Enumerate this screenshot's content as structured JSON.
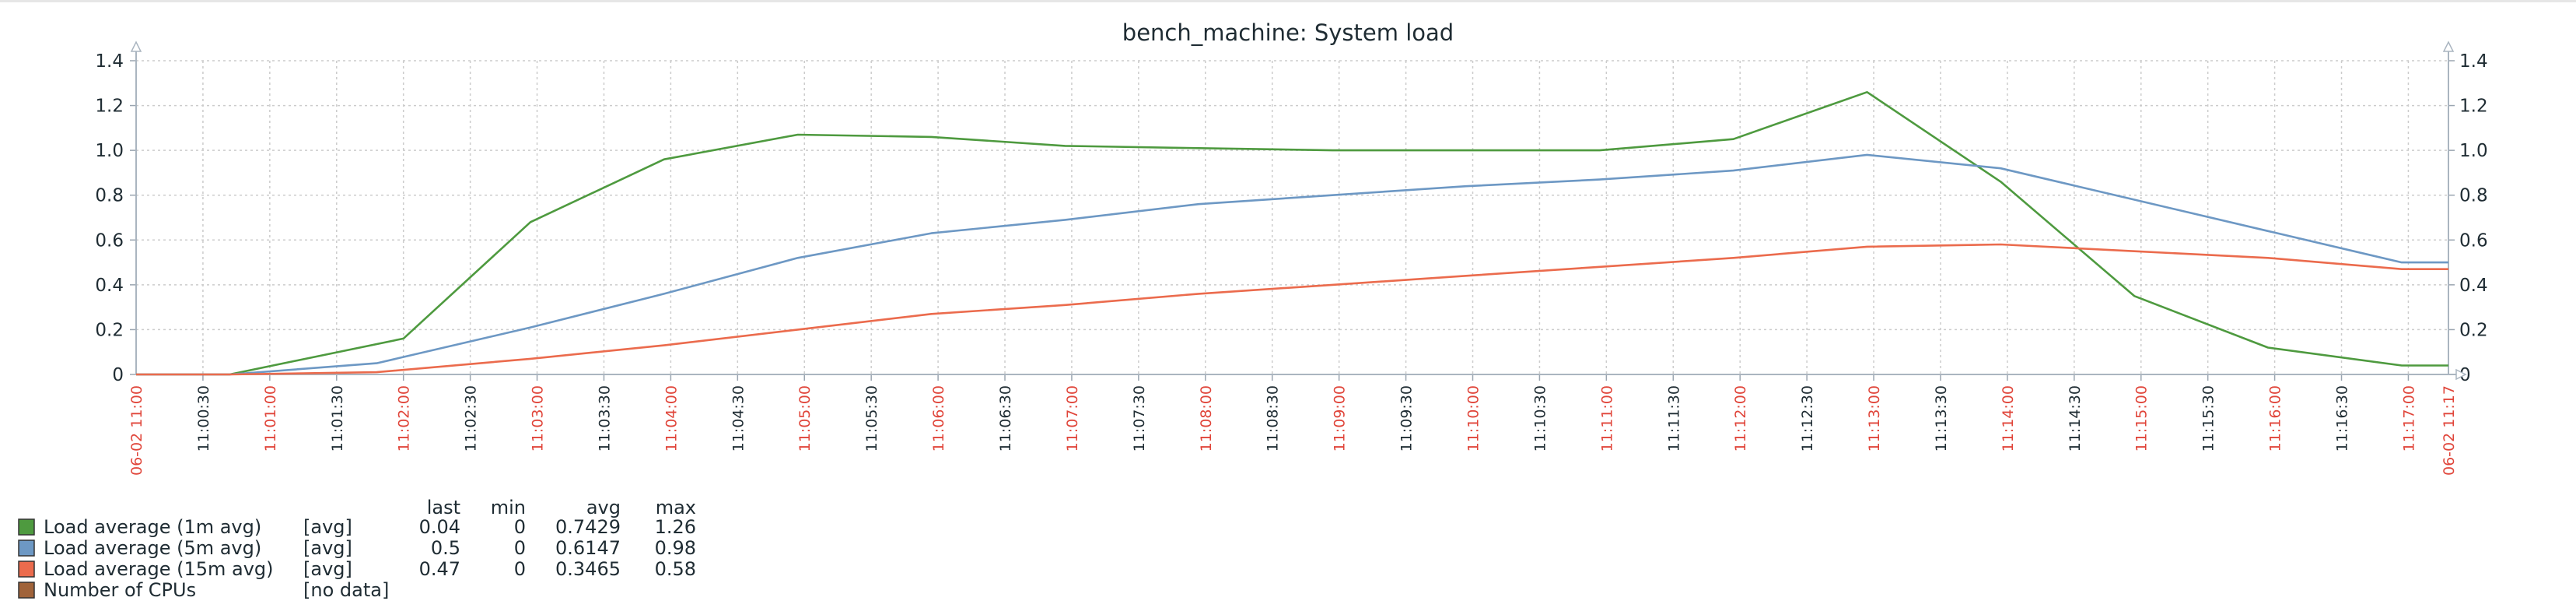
{
  "chart_data": {
    "type": "line",
    "title": "bench_machine: System load",
    "ylim": [
      0,
      1.4
    ],
    "y_ticks": [
      "0",
      "0.2",
      "0.4",
      "0.6",
      "0.8",
      "1.0",
      "1.2",
      "1.4"
    ],
    "y_tick_values": [
      0,
      0.2,
      0.4,
      0.6,
      0.8,
      1.0,
      1.2,
      1.4
    ],
    "x_start_label": "06-02 11:00",
    "x_end_label": "06-02 11:17",
    "x_ticks": [
      {
        "t": 0.5,
        "label": "11:00:30",
        "major": false
      },
      {
        "t": 1.0,
        "label": "11:01:00",
        "major": true
      },
      {
        "t": 1.5,
        "label": "11:01:30",
        "major": false
      },
      {
        "t": 2.0,
        "label": "11:02:00",
        "major": true
      },
      {
        "t": 2.5,
        "label": "11:02:30",
        "major": false
      },
      {
        "t": 3.0,
        "label": "11:03:00",
        "major": true
      },
      {
        "t": 3.5,
        "label": "11:03:30",
        "major": false
      },
      {
        "t": 4.0,
        "label": "11:04:00",
        "major": true
      },
      {
        "t": 4.5,
        "label": "11:04:30",
        "major": false
      },
      {
        "t": 5.0,
        "label": "11:05:00",
        "major": true
      },
      {
        "t": 5.5,
        "label": "11:05:30",
        "major": false
      },
      {
        "t": 6.0,
        "label": "11:06:00",
        "major": true
      },
      {
        "t": 6.5,
        "label": "11:06:30",
        "major": false
      },
      {
        "t": 7.0,
        "label": "11:07:00",
        "major": true
      },
      {
        "t": 7.5,
        "label": "11:07:30",
        "major": false
      },
      {
        "t": 8.0,
        "label": "11:08:00",
        "major": true
      },
      {
        "t": 8.5,
        "label": "11:08:30",
        "major": false
      },
      {
        "t": 9.0,
        "label": "11:09:00",
        "major": true
      },
      {
        "t": 9.5,
        "label": "11:09:30",
        "major": false
      },
      {
        "t": 10.0,
        "label": "11:10:00",
        "major": true
      },
      {
        "t": 10.5,
        "label": "11:10:30",
        "major": false
      },
      {
        "t": 11.0,
        "label": "11:11:00",
        "major": true
      },
      {
        "t": 11.5,
        "label": "11:11:30",
        "major": false
      },
      {
        "t": 12.0,
        "label": "11:12:00",
        "major": true
      },
      {
        "t": 12.5,
        "label": "11:12:30",
        "major": false
      },
      {
        "t": 13.0,
        "label": "11:13:00",
        "major": true
      },
      {
        "t": 13.5,
        "label": "11:13:30",
        "major": false
      },
      {
        "t": 14.0,
        "label": "11:14:00",
        "major": true
      },
      {
        "t": 14.5,
        "label": "11:14:30",
        "major": false
      },
      {
        "t": 15.0,
        "label": "11:15:00",
        "major": true
      },
      {
        "t": 15.5,
        "label": "11:15:30",
        "major": false
      },
      {
        "t": 16.0,
        "label": "11:16:00",
        "major": true
      },
      {
        "t": 16.5,
        "label": "11:16:30",
        "major": false
      },
      {
        "t": 17.0,
        "label": "11:17:00",
        "major": true
      }
    ],
    "series": [
      {
        "name": "Load average (1m avg)",
        "color": "#4e9a3f",
        "x": [
          0,
          0.7,
          2.0,
          2.95,
          3.95,
          4.95,
          5.95,
          6.95,
          7.95,
          8.95,
          9.95,
          10.95,
          11.95,
          12.95,
          13.95,
          14.95,
          15.95,
          16.95,
          17.3
        ],
        "y": [
          0,
          0,
          0.16,
          0.68,
          0.96,
          1.07,
          1.06,
          1.02,
          1.01,
          1.0,
          1.0,
          1.0,
          1.05,
          1.26,
          0.86,
          0.35,
          0.12,
          0.04,
          0.04
        ]
      },
      {
        "name": "Load average (5m avg)",
        "color": "#6d98c4",
        "x": [
          0,
          0.7,
          1.8,
          2.95,
          3.95,
          4.95,
          5.95,
          6.95,
          7.95,
          8.95,
          9.95,
          10.95,
          11.95,
          12.95,
          13.95,
          14.95,
          15.95,
          16.95,
          17.3
        ],
        "y": [
          0,
          0,
          0.05,
          0.21,
          0.36,
          0.52,
          0.63,
          0.69,
          0.76,
          0.8,
          0.84,
          0.87,
          0.91,
          0.98,
          0.92,
          0.78,
          0.64,
          0.5,
          0.5
        ]
      },
      {
        "name": "Load average (15m avg)",
        "color": "#eb6b4d",
        "x": [
          0,
          0.7,
          1.8,
          2.95,
          3.95,
          4.95,
          5.95,
          6.95,
          7.95,
          8.95,
          9.95,
          10.95,
          11.95,
          12.95,
          13.95,
          14.95,
          15.95,
          16.95,
          17.3
        ],
        "y": [
          0,
          0,
          0.01,
          0.07,
          0.13,
          0.2,
          0.27,
          0.31,
          0.36,
          0.4,
          0.44,
          0.48,
          0.52,
          0.57,
          0.58,
          0.55,
          0.52,
          0.47,
          0.47
        ]
      }
    ],
    "legend": {
      "headers": [
        "last",
        "min",
        "avg",
        "max"
      ],
      "rows": [
        {
          "name": "Load average (1m avg)",
          "func": "[avg]",
          "last": "0.04",
          "min": "0",
          "avg": "0.7429",
          "max": "1.26",
          "color": "#4e9a3f"
        },
        {
          "name": "Load average (5m avg)",
          "func": "[avg]",
          "last": "0.5",
          "min": "0",
          "avg": "0.6147",
          "max": "0.98",
          "color": "#6d98c4"
        },
        {
          "name": "Load average (15m avg)",
          "func": "[avg]",
          "last": "0.47",
          "min": "0",
          "avg": "0.3465",
          "max": "0.58",
          "color": "#eb6b4d"
        },
        {
          "name": "Number of CPUs",
          "func": "[no data]",
          "last": "",
          "min": "",
          "avg": "",
          "max": "",
          "color": "#a0633a"
        }
      ]
    },
    "grid": true
  }
}
